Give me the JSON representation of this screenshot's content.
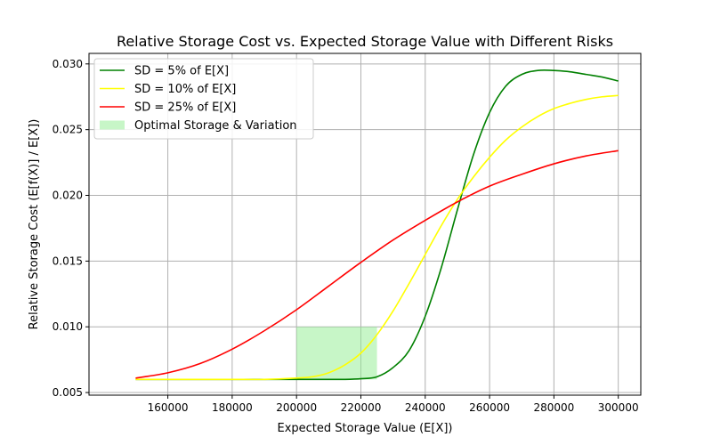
{
  "chart_data": {
    "type": "line",
    "title": "Relative Storage Cost vs. Expected Storage Value with Different Risks",
    "xlabel": "Expected Storage Value (E[X])",
    "ylabel": "Relative Storage Cost (E[f(X)] / E[X])",
    "xlim": [
      135500,
      307000
    ],
    "ylim": [
      0.0048,
      0.0308
    ],
    "xticks": [
      160000,
      180000,
      200000,
      220000,
      240000,
      260000,
      280000,
      300000
    ],
    "xtick_labels": [
      "160000",
      "180000",
      "200000",
      "220000",
      "240000",
      "260000",
      "280000",
      "300000"
    ],
    "yticks": [
      0.005,
      0.01,
      0.015,
      0.02,
      0.025,
      0.03
    ],
    "ytick_labels": [
      "0.005",
      "0.010",
      "0.015",
      "0.020",
      "0.025",
      "0.030"
    ],
    "grid": true,
    "legend_position": "top-left",
    "series": [
      {
        "name": "SD = 5% of E[X]",
        "color": "#008000",
        "x": [
          150000,
          160000,
          170000,
          180000,
          190000,
          200000,
          210000,
          215000,
          220000,
          225000,
          230000,
          235000,
          240000,
          245000,
          250000,
          255000,
          260000,
          265000,
          270000,
          275000,
          280000,
          285000,
          290000,
          295000,
          300000
        ],
        "y": [
          0.006,
          0.006,
          0.006,
          0.006,
          0.006,
          0.006,
          0.006,
          0.006,
          0.00605,
          0.0062,
          0.0069,
          0.0082,
          0.0108,
          0.0145,
          0.0189,
          0.0231,
          0.0263,
          0.0283,
          0.0292,
          0.0295,
          0.0295,
          0.0294,
          0.0292,
          0.029,
          0.0287
        ]
      },
      {
        "name": "SD = 10% of E[X]",
        "color": "#ffff00",
        "x": [
          150000,
          160000,
          170000,
          180000,
          190000,
          200000,
          205000,
          210000,
          215000,
          220000,
          225000,
          230000,
          235000,
          240000,
          245000,
          250000,
          255000,
          260000,
          265000,
          270000,
          275000,
          280000,
          285000,
          290000,
          295000,
          300000
        ],
        "y": [
          0.006,
          0.006,
          0.006,
          0.006,
          0.006,
          0.0061,
          0.0062,
          0.0065,
          0.0071,
          0.008,
          0.0094,
          0.0112,
          0.0133,
          0.0155,
          0.0177,
          0.0197,
          0.0214,
          0.0229,
          0.0242,
          0.0252,
          0.026,
          0.0266,
          0.027,
          0.0273,
          0.0275,
          0.0276
        ]
      },
      {
        "name": "SD = 25% of E[X]",
        "color": "#ff0000",
        "x": [
          150000,
          160000,
          170000,
          180000,
          190000,
          200000,
          210000,
          220000,
          230000,
          240000,
          250000,
          260000,
          270000,
          280000,
          290000,
          300000
        ],
        "y": [
          0.0061,
          0.0065,
          0.0072,
          0.0083,
          0.0097,
          0.0113,
          0.0131,
          0.0149,
          0.0166,
          0.0181,
          0.0195,
          0.0207,
          0.0216,
          0.0224,
          0.023,
          0.0234
        ]
      }
    ],
    "shaded_region": {
      "name": "Optimal Storage & Variation",
      "color": "#90ee90",
      "x_range": [
        200000,
        225000
      ],
      "y_range": [
        0.006,
        0.01
      ]
    }
  }
}
